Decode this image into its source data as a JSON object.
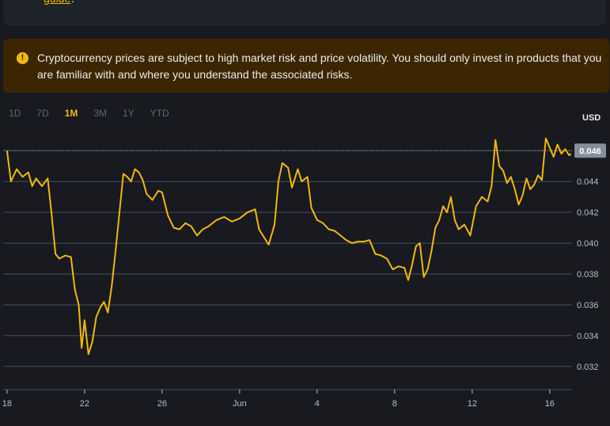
{
  "header": {
    "link_text": "guide",
    "link_suffix": "."
  },
  "warning": {
    "icon": "exclamation-icon",
    "text": "Cryptocurrency prices are subject to high market risk and price volatility. You should only invest in products that you are familiar with and where you understand the associated risks."
  },
  "ranges": [
    {
      "label": "1D",
      "active": false
    },
    {
      "label": "7D",
      "active": false
    },
    {
      "label": "1M",
      "active": true
    },
    {
      "label": "3M",
      "active": false
    },
    {
      "label": "1Y",
      "active": false
    },
    {
      "label": "YTD",
      "active": false
    }
  ],
  "currency": "USD",
  "colors": {
    "accent": "#f0b90b",
    "grid": "#474d57",
    "label": "#b7bdc6",
    "price_tag": "#848e9c"
  },
  "chart_data": {
    "type": "line",
    "ylim": [
      0.0305,
      0.0473
    ],
    "yticks": [
      0.032,
      0.034,
      0.036,
      0.038,
      0.04,
      0.042,
      0.044
    ],
    "ytick_labels": [
      "0.032",
      "0.034",
      "0.036",
      "0.038",
      "0.040",
      "0.042",
      "0.044"
    ],
    "xlim": [
      -0.2,
      29.15
    ],
    "xticks": [
      0,
      4,
      8,
      12,
      16,
      20,
      24,
      28
    ],
    "xtick_labels": [
      "18",
      "22",
      "26",
      "Jun",
      "4",
      "8",
      "12",
      "16"
    ],
    "last_price": 0.046,
    "last_price_label": "0.046",
    "series": [
      {
        "x": [
          0,
          0.2,
          0.5,
          0.8,
          1.1,
          1.3,
          1.5,
          1.8,
          2.1,
          2.3,
          2.5,
          2.7,
          3.0,
          3.3,
          3.5,
          3.7,
          3.85,
          4.0,
          4.2,
          4.4,
          4.6,
          4.8,
          5.0,
          5.2,
          5.4,
          5.6,
          5.8,
          6.0,
          6.2,
          6.4,
          6.6,
          6.8,
          7.0,
          7.2,
          7.5,
          7.8,
          8.0,
          8.3,
          8.6,
          8.9,
          9.2,
          9.5,
          9.8,
          10.1,
          10.4,
          10.8,
          11.2,
          11.6,
          12.0,
          12.4,
          12.8,
          13.0,
          13.2,
          13.5,
          13.8,
          14.0,
          14.2,
          14.5,
          14.7,
          15.0,
          15.2,
          15.5,
          15.7,
          16.0,
          16.3,
          16.6,
          16.9,
          17.2,
          17.5,
          17.8,
          18.1,
          18.4,
          18.7,
          19.0,
          19.3,
          19.6,
          19.9,
          20.2,
          20.5,
          20.7,
          20.9,
          21.1,
          21.3,
          21.5,
          21.7,
          21.9,
          22.1,
          22.3,
          22.5,
          22.7,
          22.9,
          23.1,
          23.3,
          23.6,
          23.9,
          24.2,
          24.5,
          24.8,
          25.0,
          25.2,
          25.4,
          25.6,
          25.8,
          26.0,
          26.2,
          26.4,
          26.6,
          26.8,
          27.0,
          27.2,
          27.4,
          27.6,
          27.8,
          28.0,
          28.2,
          28.4,
          28.6,
          28.8,
          29.0,
          29.1
        ],
        "y": [
          0.046,
          0.044,
          0.0448,
          0.0443,
          0.0446,
          0.0437,
          0.0442,
          0.0437,
          0.0442,
          0.0419,
          0.0393,
          0.039,
          0.0392,
          0.0391,
          0.037,
          0.036,
          0.0332,
          0.035,
          0.0328,
          0.0336,
          0.0352,
          0.0358,
          0.0362,
          0.0355,
          0.0372,
          0.0395,
          0.042,
          0.0445,
          0.0443,
          0.044,
          0.0448,
          0.0446,
          0.0441,
          0.0432,
          0.0428,
          0.0434,
          0.0433,
          0.0418,
          0.041,
          0.0409,
          0.0413,
          0.0411,
          0.0405,
          0.0409,
          0.0411,
          0.0415,
          0.0417,
          0.0414,
          0.0416,
          0.042,
          0.0422,
          0.0409,
          0.0405,
          0.0399,
          0.0412,
          0.044,
          0.0452,
          0.0449,
          0.0436,
          0.0448,
          0.044,
          0.0443,
          0.0423,
          0.0415,
          0.0413,
          0.0409,
          0.0408,
          0.0405,
          0.0402,
          0.04,
          0.0401,
          0.0401,
          0.0402,
          0.0393,
          0.0392,
          0.039,
          0.0383,
          0.0385,
          0.0384,
          0.0376,
          0.0386,
          0.0398,
          0.04,
          0.0378,
          0.0383,
          0.0395,
          0.041,
          0.0415,
          0.0424,
          0.042,
          0.043,
          0.0415,
          0.0409,
          0.0412,
          0.0405,
          0.0424,
          0.043,
          0.0427,
          0.0437,
          0.0467,
          0.045,
          0.0447,
          0.0439,
          0.0443,
          0.0435,
          0.0425,
          0.0431,
          0.0442,
          0.0435,
          0.0438,
          0.0444,
          0.0441,
          0.0468,
          0.0462,
          0.0456,
          0.0464,
          0.0458,
          0.0461,
          0.0457,
          0.0458
        ]
      }
    ]
  }
}
